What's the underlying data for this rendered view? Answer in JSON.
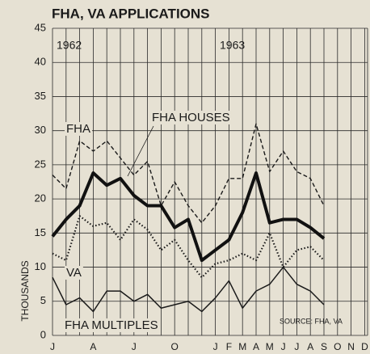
{
  "chart_data": {
    "type": "line",
    "title": "FHA, VA APPLICATIONS",
    "y_label": "THOUSANDS",
    "annotations": [
      "1962",
      "1963",
      "SOURCE: FHA, VA"
    ],
    "categories": [
      "J",
      null,
      null,
      "A",
      null,
      null,
      "J",
      null,
      null,
      "O",
      null,
      null,
      "J",
      "F",
      "M",
      "A",
      "M",
      "J",
      "J",
      "A",
      "S",
      "O",
      "N",
      "D"
    ],
    "ylim": [
      0,
      45
    ],
    "yticks": [
      0,
      5,
      10,
      15,
      20,
      25,
      30,
      35,
      40,
      45
    ],
    "grid": true,
    "series": [
      {
        "name": "FHA",
        "color": "#1a1a1a",
        "style": "dashed",
        "values": [
          23.5,
          21.5,
          28.5,
          27,
          28.5,
          26,
          23.5,
          25.5,
          19,
          22.5,
          19,
          16.5,
          19,
          23,
          23,
          31,
          24,
          27,
          24,
          23,
          19,
          null,
          null,
          null
        ]
      },
      {
        "name": "FHA HOUSES",
        "color": "#111111",
        "style": "thick",
        "values": [
          14.5,
          17,
          19,
          23.8,
          22,
          23,
          20.5,
          19,
          19,
          15.8,
          17,
          11,
          12.5,
          14,
          18,
          23.8,
          16.5,
          17,
          17,
          15.8,
          14.2,
          null,
          null,
          null
        ]
      },
      {
        "name": "VA",
        "color": "#1a1a1a",
        "style": "dotted",
        "values": [
          12,
          11,
          17.5,
          16,
          16.5,
          14,
          17,
          15.5,
          12.5,
          14,
          11,
          8.5,
          10.5,
          11,
          12,
          11,
          15,
          10,
          12.5,
          13,
          11,
          null,
          null,
          null
        ]
      },
      {
        "name": "FHA MULTIPLES",
        "color": "#1a1a1a",
        "style": "solid",
        "values": [
          8.5,
          4.5,
          5.5,
          3.5,
          6.5,
          6.5,
          5,
          6,
          4,
          4.5,
          5,
          3.5,
          5.5,
          8,
          4,
          6.5,
          7.5,
          10,
          7.5,
          6.5,
          4.5,
          null,
          null,
          null
        ]
      }
    ]
  }
}
